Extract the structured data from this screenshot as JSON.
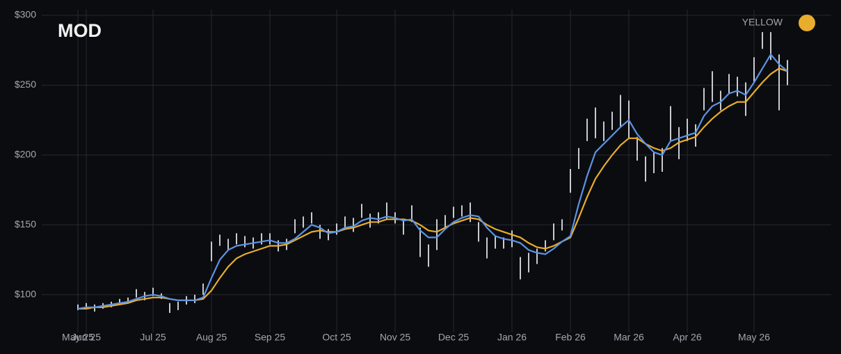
{
  "chart_data": {
    "type": "ohlc",
    "title": "MOD",
    "categories": [
      "May 25",
      "Jun 25",
      null,
      null,
      null,
      null,
      null,
      null,
      null,
      "Jul 25",
      null,
      null,
      null,
      null,
      null,
      null,
      "Aug 25",
      null,
      null,
      null,
      null,
      null,
      null,
      "Sep 25",
      null,
      null,
      null,
      null,
      null,
      null,
      null,
      "Oct 25",
      null,
      null,
      null,
      null,
      null,
      null,
      "Nov 25",
      null,
      null,
      null,
      null,
      null,
      null,
      "Dec 25",
      null,
      null,
      null,
      null,
      null,
      null,
      "Jan 26",
      null,
      null,
      null,
      null,
      null,
      null,
      "Feb 26",
      null,
      null,
      null,
      null,
      null,
      null,
      "Mar 26",
      null,
      null,
      null,
      null,
      null,
      null,
      "Apr 26",
      null,
      null,
      null,
      null,
      null,
      null,
      null,
      "May 26",
      null,
      null,
      null,
      null
    ],
    "high": [
      93,
      94,
      93,
      94,
      95,
      97,
      98,
      104,
      102,
      105,
      101,
      94,
      95,
      99,
      100,
      108,
      138,
      143,
      140,
      144,
      142,
      141,
      144,
      144,
      139,
      140,
      154,
      156,
      159,
      150,
      147,
      151,
      156,
      155,
      165,
      158,
      159,
      166,
      159,
      153,
      164,
      148,
      136,
      154,
      157,
      163,
      164,
      166,
      152,
      141,
      142,
      141,
      146,
      127,
      130,
      133,
      139,
      151,
      154,
      190,
      205,
      226,
      234,
      224,
      231,
      243,
      239,
      213,
      199,
      202,
      205,
      235,
      220,
      226,
      222,
      248,
      260,
      246,
      258,
      256,
      252,
      270,
      288,
      288,
      272,
      268
    ],
    "low": [
      89,
      90,
      88,
      90,
      91,
      93,
      94,
      98,
      96,
      99,
      97,
      87,
      89,
      93,
      94,
      100,
      124,
      135,
      132,
      136,
      134,
      133,
      136,
      136,
      131,
      132,
      144,
      148,
      151,
      140,
      139,
      143,
      148,
      145,
      155,
      148,
      151,
      154,
      151,
      143,
      152,
      127,
      120,
      132,
      147,
      155,
      156,
      152,
      138,
      126,
      133,
      133,
      134,
      111,
      116,
      122,
      131,
      139,
      146,
      173,
      190,
      210,
      212,
      210,
      218,
      220,
      212,
      196,
      181,
      187,
      188,
      210,
      197,
      210,
      206,
      232,
      238,
      232,
      244,
      242,
      228,
      252,
      276,
      268,
      232,
      250
    ],
    "bar_color": "#c9cbd1",
    "line": {
      "color": "#5b94e3",
      "values": [
        90,
        91,
        91,
        92,
        93,
        94,
        95,
        97,
        99,
        100,
        99,
        97,
        96,
        96,
        96,
        98,
        112,
        125,
        132,
        135,
        136,
        137,
        138,
        139,
        137,
        137,
        140,
        145,
        150,
        148,
        144,
        145,
        148,
        149,
        153,
        155,
        154,
        156,
        155,
        153,
        154,
        146,
        141,
        141,
        147,
        152,
        155,
        157,
        156,
        148,
        142,
        140,
        139,
        137,
        132,
        130,
        129,
        133,
        138,
        142,
        165,
        185,
        202,
        208,
        214,
        220,
        225,
        215,
        208,
        202,
        200,
        210,
        212,
        214,
        216,
        228,
        235,
        238,
        244,
        246,
        243,
        252,
        262,
        272,
        265,
        260
      ]
    },
    "series": [
      {
        "name": "YELLOW",
        "color": "#e8ad2c",
        "values": [
          90,
          90,
          91,
          91,
          92,
          93,
          94,
          96,
          97,
          98,
          98,
          97,
          96,
          96,
          96,
          97,
          103,
          112,
          120,
          126,
          129,
          131,
          133,
          135,
          135,
          136,
          139,
          142,
          145,
          146,
          145,
          145,
          147,
          148,
          150,
          152,
          152,
          154,
          154,
          154,
          153,
          150,
          146,
          145,
          148,
          151,
          153,
          155,
          154,
          150,
          147,
          145,
          143,
          141,
          137,
          134,
          133,
          135,
          138,
          141,
          155,
          170,
          183,
          192,
          200,
          207,
          212,
          212,
          208,
          205,
          203,
          205,
          209,
          211,
          213,
          220,
          226,
          231,
          235,
          238,
          238,
          245,
          252,
          258,
          262,
          260
        ]
      }
    ],
    "ylim": [
      73,
      304
    ],
    "yticks": [
      {
        "value": 100,
        "label": "$100"
      },
      {
        "value": 150,
        "label": "$150"
      },
      {
        "value": 200,
        "label": "$200"
      },
      {
        "value": 250,
        "label": "$250"
      },
      {
        "value": 300,
        "label": "$300"
      }
    ],
    "grid": true
  }
}
